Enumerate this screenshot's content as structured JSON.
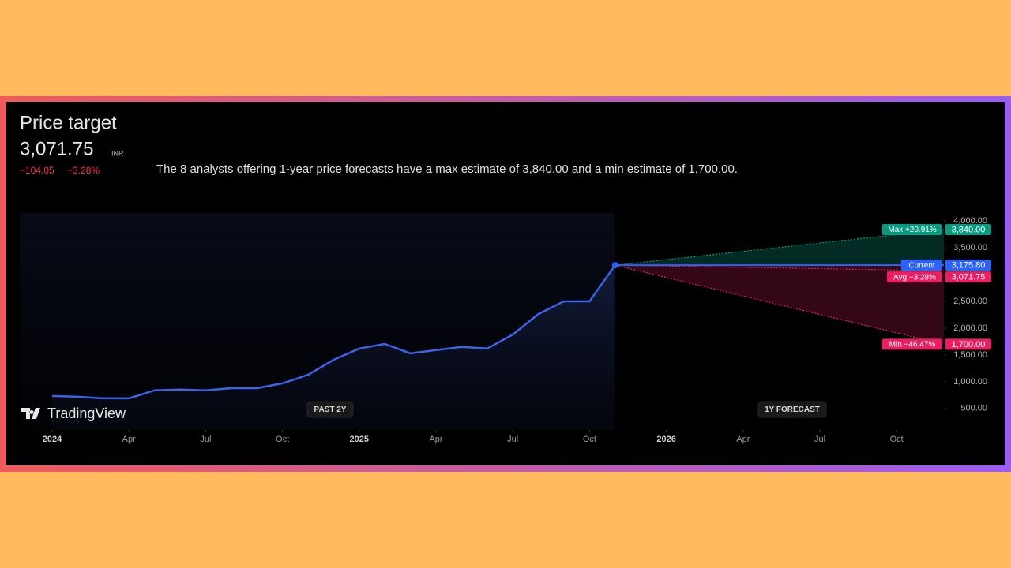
{
  "header": {
    "title": "Price target",
    "price": "3,071.75",
    "currency": "INR",
    "change": "−104.05",
    "change_pct": "−3.28%",
    "description": "The 8 analysts offering 1-year price forecasts have a max estimate of 3,840.00 and a min estimate of 1,700.00."
  },
  "chart_data": {
    "type": "line",
    "brand": "TradingView",
    "past_label": "PAST 2Y",
    "forecast_label": "1Y FORECAST",
    "x": [
      "2024-01",
      "2024-02",
      "2024-03",
      "2024-04",
      "2024-05",
      "2024-06",
      "2024-07",
      "2024-08",
      "2024-09",
      "2024-10",
      "2024-11",
      "2024-12",
      "2025-01",
      "2025-02",
      "2025-03",
      "2025-04",
      "2025-05",
      "2025-06",
      "2025-07",
      "2025-08",
      "2025-09",
      "2025-10",
      "2025-11"
    ],
    "series": [
      {
        "color": "#3b63e6",
        "values": [
          735,
          720,
          690,
          690,
          840,
          855,
          840,
          880,
          880,
          970,
          1130,
          1410,
          1620,
          1705,
          1530,
          1590,
          1650,
          1620,
          1880,
          2265,
          2500,
          2500,
          3175.8
        ]
      }
    ],
    "ylim": [
      100,
      4150
    ],
    "yticks": [
      {
        "value": 500,
        "label": "500.00"
      },
      {
        "value": 1000,
        "label": "1,000.00"
      },
      {
        "value": 1500,
        "label": "1,500.00"
      },
      {
        "value": 2000,
        "label": "2,000.00"
      },
      {
        "value": 2500,
        "label": "2,500.00"
      },
      {
        "value": 3500,
        "label": "3,500.00"
      },
      {
        "value": 4000,
        "label": "4,000.00"
      }
    ],
    "xticks": [
      {
        "value": "2024-01",
        "label": "2024"
      },
      {
        "value": "2024-04",
        "label": "Apr"
      },
      {
        "value": "2024-07",
        "label": "Jul"
      },
      {
        "value": "2024-10",
        "label": "Oct"
      },
      {
        "value": "2025-01",
        "label": "2025"
      },
      {
        "value": "2025-04",
        "label": "Apr"
      },
      {
        "value": "2025-07",
        "label": "Jul"
      },
      {
        "value": "2025-10",
        "label": "Oct"
      },
      {
        "value": "2026-01",
        "label": "2026"
      },
      {
        "value": "2026-04",
        "label": "Apr"
      },
      {
        "value": "2026-07",
        "label": "Jul"
      },
      {
        "value": "2026-10",
        "label": "Oct"
      }
    ],
    "forecast": {
      "x": "2026-11",
      "current": {
        "label": "Current",
        "value": 3175.8,
        "value_label": "3,175.80",
        "color": "#2962ff"
      },
      "targets": [
        {
          "label": "Max +20.91%",
          "value": 3840,
          "value_label": "3,840.00",
          "color": "#089981"
        },
        {
          "label": "Avg −3.28%",
          "value": 3071.75,
          "value_label": "3,071.75",
          "color": "#e91e63"
        },
        {
          "label": "Min −46.47%",
          "value": 1700,
          "value_label": "1,700.00",
          "color": "#e91e63"
        }
      ]
    }
  }
}
